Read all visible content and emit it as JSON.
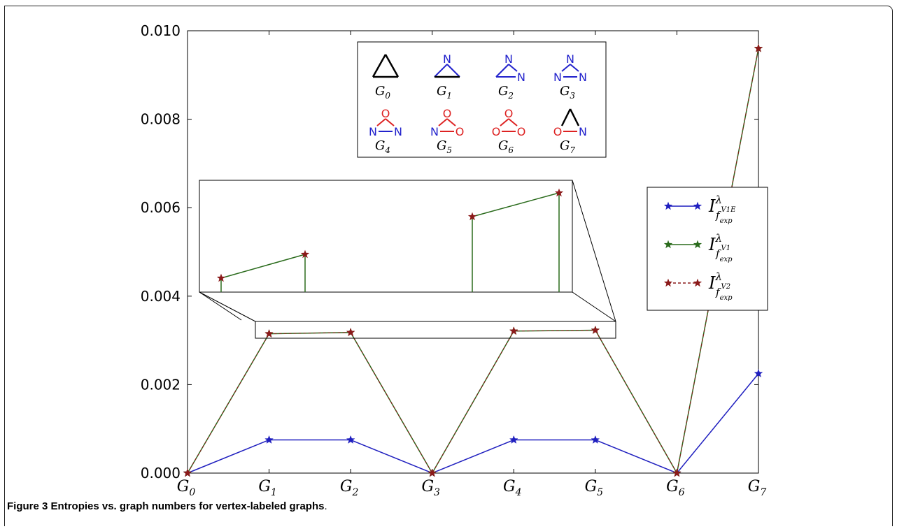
{
  "caption": {
    "label": "Figure 3",
    "text": "Entropies vs. graph numbers for vertex-labeled graphs",
    "period": "."
  },
  "colors": {
    "series1": "#1f1fbf",
    "series2": "#2a6b1c",
    "series3": "#8b1a1a",
    "N": "#2222cc",
    "O": "#dd2222",
    "C": "#000000"
  },
  "chart_data": {
    "type": "line",
    "title": "",
    "xlabel": "",
    "ylabel": "",
    "categories": [
      "G0",
      "G1",
      "G2",
      "G3",
      "G4",
      "G5",
      "G6",
      "G7"
    ],
    "ylim": [
      0,
      0.01
    ],
    "yticks": [
      "0.000",
      "0.002",
      "0.004",
      "0.006",
      "0.008",
      "0.010"
    ],
    "legend_position": "right",
    "series": [
      {
        "legend": "I^λ_{f_exp^{V1E}}",
        "color": "#1f1fbf",
        "style": "solid",
        "values": [
          0.0,
          0.00075,
          0.00075,
          0.0,
          0.00075,
          0.00075,
          0.0,
          0.00225
        ]
      },
      {
        "legend": "I^λ_{f_exp^{V1}}",
        "color": "#2a6b1c",
        "style": "solid",
        "values": [
          0.0,
          0.00315,
          0.00318,
          0.0,
          0.00321,
          0.00323,
          0.0,
          0.0096
        ]
      },
      {
        "legend": "I^λ_{f_exp^{V2}}",
        "color": "#8b1a1a",
        "style": "dashed",
        "values": [
          0.0,
          0.00315,
          0.00318,
          0.0,
          0.00321,
          0.00323,
          0.0,
          0.0096
        ]
      }
    ],
    "inset": {
      "description": "zoom of G1..G5 band",
      "ylim": [
        0.003,
        0.0034
      ]
    },
    "graph_key": [
      {
        "label": "G",
        "sub": "0",
        "top": "",
        "left": "",
        "right": "",
        "e_left": "C",
        "e_right": "C",
        "e_bottom": "C"
      },
      {
        "label": "G",
        "sub": "1",
        "top": "N",
        "left": "",
        "right": "",
        "e_left": "N",
        "e_right": "N",
        "e_bottom": "C"
      },
      {
        "label": "G",
        "sub": "2",
        "top": "N",
        "left": "",
        "right": "N",
        "e_left": "N",
        "e_right": "N",
        "e_bottom": "N"
      },
      {
        "label": "G",
        "sub": "3",
        "top": "N",
        "left": "N",
        "right": "N",
        "e_left": "N",
        "e_right": "N",
        "e_bottom": "N"
      },
      {
        "label": "G",
        "sub": "4",
        "top": "O",
        "left": "N",
        "right": "N",
        "e_left": "O",
        "e_right": "O",
        "e_bottom": "N"
      },
      {
        "label": "G",
        "sub": "5",
        "top": "O",
        "left": "N",
        "right": "O",
        "e_left": "O",
        "e_right": "O",
        "e_bottom": "O"
      },
      {
        "label": "G",
        "sub": "6",
        "top": "O",
        "left": "O",
        "right": "O",
        "e_left": "O",
        "e_right": "O",
        "e_bottom": "O"
      },
      {
        "label": "G",
        "sub": "7",
        "top": "",
        "left": "O",
        "right": "N",
        "e_left": "C",
        "e_right": "C",
        "e_bottom": "O"
      }
    ]
  }
}
